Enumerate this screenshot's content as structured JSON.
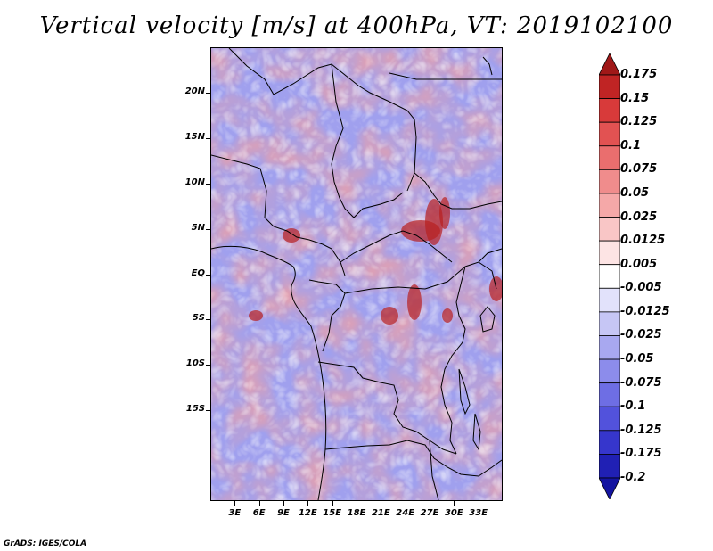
{
  "title": "Vertical velocity [m/s] at 400hPa, VT: 2019102100",
  "credit": "GrADS: IGES/COLA",
  "map": {
    "lat_range": [
      -25,
      25
    ],
    "lon_range": [
      0,
      36
    ],
    "lat_labels": [
      {
        "lat": 20,
        "text": "20N"
      },
      {
        "lat": 15,
        "text": "15N"
      },
      {
        "lat": 10,
        "text": "10N"
      },
      {
        "lat": 5,
        "text": "5N"
      },
      {
        "lat": 0,
        "text": "EQ"
      },
      {
        "lat": -5,
        "text": "5S"
      },
      {
        "lat": -10,
        "text": "10S"
      },
      {
        "lat": -15,
        "text": "15S"
      }
    ],
    "lon_labels": [
      {
        "lon": 3,
        "text": "3E"
      },
      {
        "lon": 6,
        "text": "6E"
      },
      {
        "lon": 9,
        "text": "9E"
      },
      {
        "lon": 12,
        "text": "12E"
      },
      {
        "lon": 15,
        "text": "15E"
      },
      {
        "lon": 18,
        "text": "18E"
      },
      {
        "lon": 21,
        "text": "21E"
      },
      {
        "lon": 24,
        "text": "24E"
      },
      {
        "lon": 27,
        "text": "27E"
      },
      {
        "lon": 30,
        "text": "30E"
      },
      {
        "lon": 33,
        "text": "33E"
      }
    ]
  },
  "colorbar": {
    "levels": [
      "0.175",
      "0.15",
      "0.125",
      "0.1",
      "0.075",
      "0.05",
      "0.025",
      "0.0125",
      "0.005",
      "-0.005",
      "-0.0125",
      "-0.025",
      "-0.05",
      "-0.075",
      "-0.1",
      "-0.125",
      "-0.175",
      "-0.2"
    ],
    "colors": [
      "#a01818",
      "#c02424",
      "#d83a3a",
      "#e25252",
      "#ea6e6e",
      "#f08c8c",
      "#f5a8a8",
      "#f9c6c6",
      "#fde4e4",
      "#ffffff",
      "#e2e2fb",
      "#c6c6f5",
      "#a8a8f0",
      "#8c8ceb",
      "#6e6ee4",
      "#5252dc",
      "#3636cc",
      "#2020b4",
      "#1414a0"
    ]
  },
  "field_colors": {
    "strong_pos": "#b82020",
    "pos": "#f0a0a0",
    "neg": "#a0a0ee",
    "strong_neg": "#3030c0"
  }
}
